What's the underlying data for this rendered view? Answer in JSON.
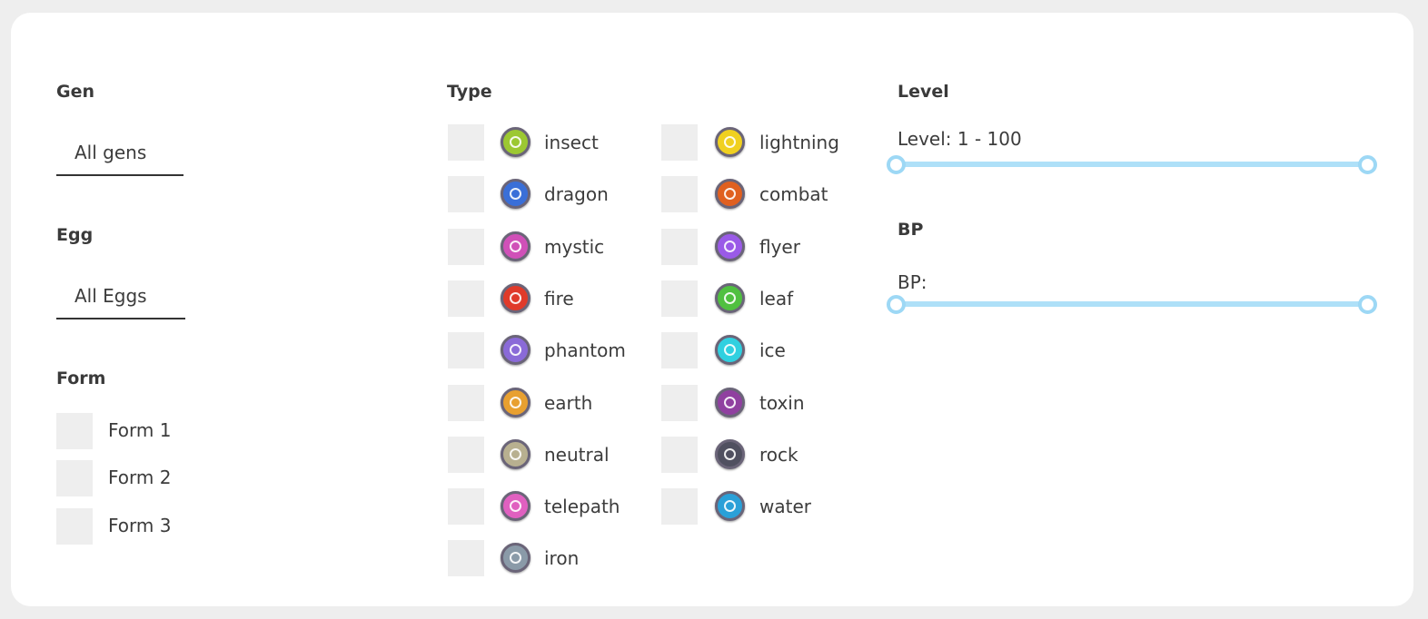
{
  "gen": {
    "heading": "Gen",
    "value": "All gens"
  },
  "egg": {
    "heading": "Egg",
    "value": "All Eggs"
  },
  "form": {
    "heading": "Form",
    "options": [
      "Form 1",
      "Form 2",
      "Form 3"
    ]
  },
  "type": {
    "heading": "Type",
    "items": [
      {
        "label": "insect",
        "icon": "insect-icon",
        "color": "#9cc832"
      },
      {
        "label": "dragon",
        "icon": "dragon-icon",
        "color": "#3a6fd8"
      },
      {
        "label": "mystic",
        "icon": "mystic-icon",
        "color": "#d050b8"
      },
      {
        "label": "fire",
        "icon": "fire-icon",
        "color": "#e03a2a"
      },
      {
        "label": "phantom",
        "icon": "phantom-icon",
        "color": "#8a6ad8"
      },
      {
        "label": "earth",
        "icon": "earth-icon",
        "color": "#e8a030"
      },
      {
        "label": "neutral",
        "icon": "neutral-icon",
        "color": "#b8b090"
      },
      {
        "label": "telepath",
        "icon": "telepath-icon",
        "color": "#e060c0"
      },
      {
        "label": "iron",
        "icon": "iron-icon",
        "color": "#8a9aa8"
      },
      {
        "label": "lightning",
        "icon": "lightning-icon",
        "color": "#f0d020"
      },
      {
        "label": "combat",
        "icon": "combat-icon",
        "color": "#e06020"
      },
      {
        "label": "flyer",
        "icon": "flyer-icon",
        "color": "#9a5ae8"
      },
      {
        "label": "leaf",
        "icon": "leaf-icon",
        "color": "#50c040"
      },
      {
        "label": "ice",
        "icon": "ice-icon",
        "color": "#30d0e0"
      },
      {
        "label": "toxin",
        "icon": "toxin-icon",
        "color": "#9040a0"
      },
      {
        "label": "rock",
        "icon": "rock-icon",
        "color": "#505060"
      },
      {
        "label": "water",
        "icon": "water-icon",
        "color": "#2aa0d8"
      }
    ]
  },
  "level": {
    "heading": "Level",
    "label": "Level: 1 - 100",
    "min": 1,
    "max": 100
  },
  "bp": {
    "heading": "BP",
    "label": "BP:"
  },
  "colors": {
    "slider": "#9dd8f5",
    "checkbox": "#eeeeee"
  }
}
